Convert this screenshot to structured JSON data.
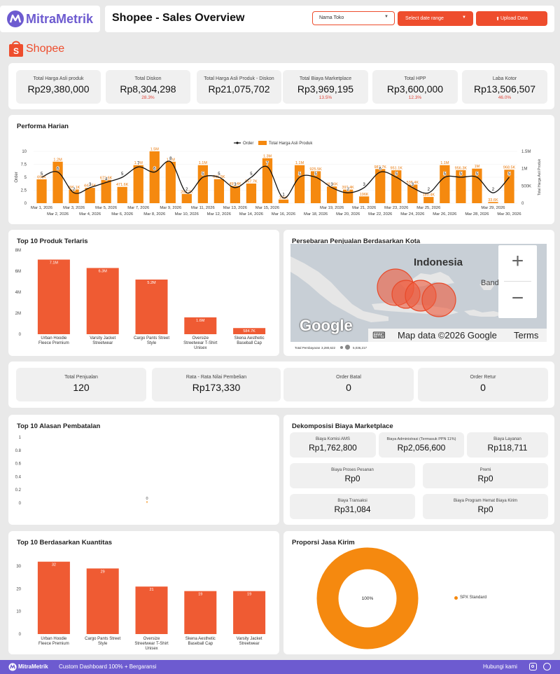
{
  "brand": {
    "name": "MitraMetrik",
    "shop_logo_text": "Shopee"
  },
  "header": {
    "title": "Shopee - Sales Overview",
    "store_select": "Nama Toko",
    "date_range": "Select date range",
    "upload_label": "Upload Data"
  },
  "kpis": [
    {
      "label": "Total Harga Asli produk",
      "value": "Rp29,380,000",
      "pct": ""
    },
    {
      "label": "Total Diskon",
      "value": "Rp8,304,298",
      "pct": "28.3%"
    },
    {
      "label": "Total Harga Asli Produk - Diskon",
      "value": "Rp21,075,702",
      "pct": ""
    },
    {
      "label": "Total Biaya Marketplace",
      "value": "Rp3,969,195",
      "pct": "13.5%"
    },
    {
      "label": "Total HPP",
      "value": "Rp3,600,000",
      "pct": "12.3%"
    },
    {
      "label": "Laba Kotor",
      "value": "Rp13,506,507",
      "pct": "46.0%"
    }
  ],
  "daily": {
    "title": "Performa Harian",
    "legend_order": "Order",
    "legend_bar": "Total Harga Asli Produk",
    "ylabel_left": "Order",
    "ylabel_right": "Total Harga Asli Produk",
    "left_ticks": [
      "10",
      "7.5",
      "5",
      "2.5",
      "0"
    ],
    "right_ticks": [
      "1.5M",
      "1M",
      "500K",
      "0"
    ]
  },
  "top_products": {
    "title": "Top 10 Produk Terlaris",
    "y_ticks": [
      "8M",
      "6M",
      "4M",
      "2M",
      "0"
    ]
  },
  "map": {
    "title": "Persebaran Penjualan Berdasarkan Kota",
    "country_label": "Indonesia",
    "partial_label": "Band",
    "google_label": "Google",
    "attribution": "Map data ©2026 Google",
    "terms": "Terms",
    "zoom_in": "+",
    "zoom_out": "−",
    "legend_label": "Total Pembayaran",
    "legend_min": "3,280,622",
    "legend_max": "5,036,217"
  },
  "kpis2": [
    {
      "label": "Total Penjualan",
      "value": "120"
    },
    {
      "label": "Rata - Rata Nilai Pembelian",
      "value": "Rp173,330"
    },
    {
      "label": "Order Batal",
      "value": "0"
    },
    {
      "label": "Order Retur",
      "value": "0"
    }
  ],
  "cancel": {
    "title": "Top 10 Alasan Pembatalan",
    "y_ticks": [
      "1",
      "0.8",
      "0.6",
      "0.4",
      "0.2",
      "0"
    ],
    "bar_label": "0"
  },
  "fees": {
    "title": "Dekomposisi Biaya Marketplace",
    "row1": [
      {
        "label": "Biaya Komisi AMS",
        "value": "Rp1,762,800"
      },
      {
        "label": "Biaya Administrasi (Termasuk PPN 11%)",
        "value": "Rp2,056,600"
      },
      {
        "label": "Biaya Layanan",
        "value": "Rp118,711"
      }
    ],
    "row2": [
      {
        "label": "Biaya Proses Pesanan",
        "value": "Rp0"
      },
      {
        "label": "Premi",
        "value": "Rp0"
      }
    ],
    "row3": [
      {
        "label": "Biaya Transaksi",
        "value": "Rp31,084"
      },
      {
        "label": "Biaya Program Hemat Biaya Kirim",
        "value": "Rp0"
      }
    ]
  },
  "qty": {
    "title": "Top 10 Berdasarkan Kuantitas",
    "y_ticks": [
      "30",
      "20",
      "10",
      "0"
    ]
  },
  "shipping": {
    "title": "Proporsi Jasa Kirim",
    "center_label": "100%",
    "legend": "SPX Standard"
  },
  "footer": {
    "tagline": "Custom Dashboard 100% + Bergaransi",
    "contact": "Hubungi kami"
  },
  "colors": {
    "accent": "#ee4d2d",
    "bar_orange": "#f5890f",
    "footer": "#6d5bd0"
  },
  "chart_data": [
    {
      "type": "bar",
      "name": "Performa Harian",
      "title": "Performa Harian",
      "ylabel": "Order",
      "y2label": "Total Harga Asli Produk",
      "ylim": [
        0,
        10
      ],
      "y2lim": [
        0,
        1500000
      ],
      "categories": [
        "Mar 1, 2026",
        "Mar 2, 2026",
        "Mar 3, 2026",
        "Mar 4, 2026",
        "Mar 5, 2026",
        "Mar 6, 2026",
        "Mar 7, 2026",
        "Mar 8, 2026",
        "Mar 9, 2026",
        "Mar 10, 2026",
        "Mar 11, 2026",
        "Mar 12, 2026",
        "Mar 13, 2026",
        "Mar 14, 2026",
        "Mar 15, 2026",
        "Mar 16, 2026",
        "Mar 17, 2026",
        "Mar 18, 2026",
        "Mar 19, 2026",
        "Mar 20, 2026",
        "Mar 21, 2026",
        "Mar 22, 2026",
        "Mar 23, 2026",
        "Mar 24, 2026",
        "Mar 25, 2026",
        "Mar 26, 2026",
        "Mar 27, 2026",
        "Mar 28, 2026",
        "Mar 29, 2026",
        "Mar 30, 2026"
      ],
      "x_tick_labels": [
        "Mar 1, 2026",
        "Mar 2, 2026",
        "Mar 3, 2026",
        "Mar 4, 2026",
        "Mar 5, 2026",
        "Mar 6, 2026",
        "Mar 7, 2026",
        "Mar 8, 2026",
        "Mar 9, 2026",
        "Mar 10, 2026",
        "Mar 11, 2026",
        "Mar 12, 2026",
        "Mar 13, 2026",
        "Mar 14, 2026",
        "Mar 15, 2026",
        "Mar 16, 2026",
        "Mar 18, 2026",
        "Mar 19, 2026",
        "Mar 20, 2026",
        "Mar 21, 2026",
        "Mar 22, 2026",
        "Mar 23, 2026",
        "Mar 24, 2026",
        "Mar 25, 2026",
        "Mar 26, 2026",
        "Mar 28, 2026",
        "Mar 29, 2026",
        "Mar 30, 2026"
      ],
      "series": [
        {
          "name": "Total Harga Asli Produk",
          "type": "bar",
          "axis": "right",
          "values": [
            690000,
            1200000,
            396100,
            443500,
            673600,
            471600,
            1100000,
            1500000,
            1200000,
            268200,
            1100000,
            695500,
            498400,
            567700,
            1300000,
            105000,
            1100000,
            925500,
            482600,
            392400,
            196000,
            987700,
            951100,
            538400,
            180400,
            1100000,
            956300,
            1000000,
            33600,
            968500
          ],
          "labels": [
            "690K",
            "1.2M",
            "396.1K",
            "443.5K",
            "673.6K",
            "471.6K",
            "1.1M",
            "1.5M",
            "1.2M",
            "268.2K",
            "1.1M",
            "695.5K",
            "498.4K",
            "567.7K",
            "1.3M",
            "105K",
            "1.1M",
            "925.5K",
            "482.6K",
            "392.4K",
            "196K",
            "987.7K",
            "951.1K",
            "538.4K",
            "180.4K",
            "1.1M",
            "956.3K",
            "1M",
            "33.6K",
            "968.5K"
          ]
        },
        {
          "name": "Order",
          "type": "line",
          "axis": "left",
          "values": [
            5,
            6,
            2,
            3,
            4,
            5,
            7,
            6,
            8,
            2,
            5,
            5,
            3,
            5,
            7,
            1,
            5,
            5,
            3,
            2,
            3,
            6,
            5,
            3,
            2,
            5,
            5,
            5,
            2,
            5
          ]
        }
      ]
    },
    {
      "type": "bar",
      "title": "Top 10 Produk Terlaris",
      "categories": [
        "Urban Hoodie Fleece Premium",
        "Varsity Jacket Streetwear",
        "Cargo Pants Street Style",
        "Oversize Streetwear T-Shirt Unisex",
        "Skena Aesthetic Baseball Cap"
      ],
      "values": [
        7100000,
        6300000,
        5200000,
        1600000,
        584700
      ],
      "labels": [
        "7.1M",
        "6.3M",
        "5.2M",
        "1.6M",
        "584.7K"
      ],
      "ylim": [
        0,
        8000000
      ]
    },
    {
      "type": "bar",
      "title": "Top 10 Alasan Pembatalan",
      "categories": [
        ""
      ],
      "values": [
        0
      ],
      "ylim": [
        0,
        1
      ]
    },
    {
      "type": "bar",
      "title": "Top 10 Berdasarkan Kuantitas",
      "categories": [
        "Urban Hoodie Fleece Premium",
        "Cargo Pants Street Style",
        "Oversize Streetwear T-Shirt Unisex",
        "Skena Aesthetic Baseball Cap",
        "Varsity Jacket Streetwear"
      ],
      "values": [
        32,
        29,
        21,
        19,
        19
      ],
      "ylim": [
        0,
        35
      ]
    },
    {
      "type": "pie",
      "title": "Proporsi Jasa Kirim",
      "categories": [
        "SPX Standard"
      ],
      "values": [
        100
      ],
      "labels": [
        "100%"
      ]
    }
  ]
}
